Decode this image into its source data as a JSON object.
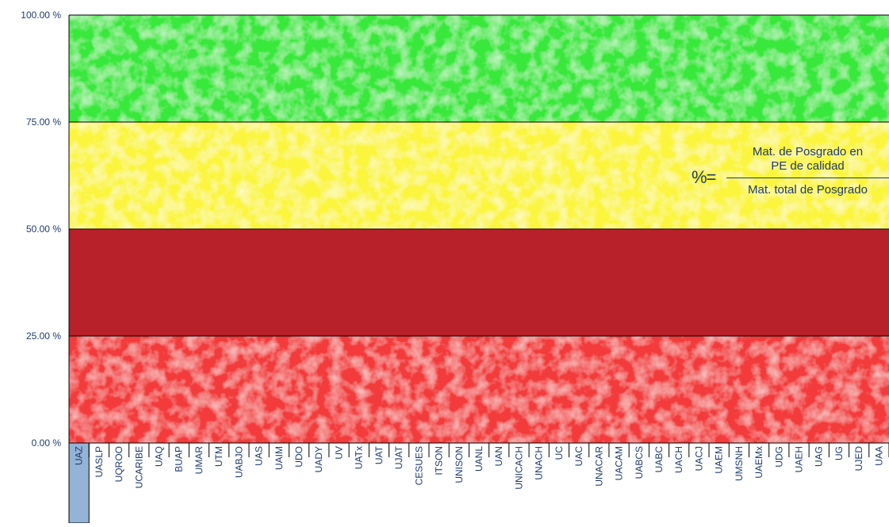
{
  "chart_data": {
    "type": "bar",
    "ylim": [
      0,
      100
    ],
    "yticks": [
      "0.00 %",
      "25.00 %",
      "50.00 %",
      "75.00 %",
      "100.00 %"
    ],
    "ytick_values": [
      0,
      25,
      50,
      75,
      100
    ],
    "bands": [
      {
        "from": 75,
        "to": 100,
        "color": "#39e83b"
      },
      {
        "from": 50,
        "to": 75,
        "color": "#fbf53c"
      },
      {
        "from": 25,
        "to": 50,
        "color": "#b8202a"
      },
      {
        "from": 0,
        "to": 25,
        "color": "#f33b3b"
      }
    ],
    "categories": [
      "UAZ",
      "UASLP",
      "UQROO",
      "UCARIBE",
      "UAQ",
      "BUAP",
      "UMAR",
      "UTM",
      "UABJO",
      "UAS",
      "UAIM",
      "UDO",
      "UADY",
      "UV",
      "UATx",
      "UAT",
      "UJAT",
      "CESUES",
      "ITSON",
      "UNISON",
      "UANL",
      "UAN",
      "UNICACH",
      "UNACH",
      "UC",
      "UAC",
      "UNACAR",
      "UACAM",
      "UABCS",
      "UABC",
      "UACH",
      "UACJ",
      "UAEM",
      "UMSNH",
      "UAEMx",
      "UDG",
      "UAEH",
      "UAG",
      "UG",
      "UJED",
      "UAA"
    ],
    "highlighted_category": "UAZ",
    "highlight_color": "#95b3d7"
  },
  "formula": {
    "lhs": "%=",
    "numerator_line1": "Mat. de Posgrado en",
    "numerator_line2": "PE de calidad",
    "denominator": "Mat. total de Posgrado"
  }
}
